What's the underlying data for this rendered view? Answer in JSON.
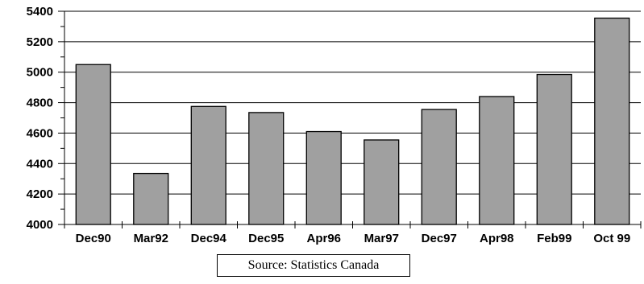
{
  "chart_data": {
    "type": "bar",
    "title": "",
    "xlabel": "",
    "ylabel": "",
    "categories": [
      "Dec90",
      "Mar92",
      "Dec94",
      "Dec95",
      "Apr96",
      "Mar97",
      "Dec97",
      "Apr98",
      "Feb99",
      "Oct 99"
    ],
    "values": [
      5050,
      4335,
      4775,
      4735,
      4610,
      4555,
      4755,
      4840,
      4985,
      5355
    ],
    "ylim": [
      4000,
      5400
    ],
    "yticks": [
      4000,
      4200,
      4400,
      4600,
      4800,
      5000,
      5200,
      5400
    ],
    "grid": true,
    "legend": "none",
    "bar_color": "#a0a0a0",
    "source": "Source: Statistics Canada"
  }
}
